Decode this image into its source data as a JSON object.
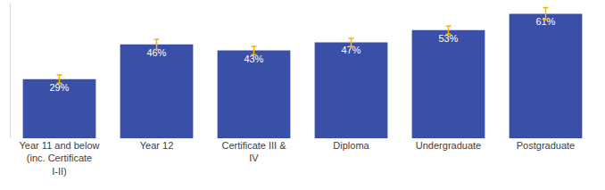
{
  "chart_data": {
    "type": "bar",
    "categories": [
      "Year 11 and below (inc. Certificate I-II)",
      "Year 12",
      "Certificate III & IV",
      "Diploma",
      "Undergraduate",
      "Postgraduate"
    ],
    "values": [
      29,
      46,
      43,
      47,
      53,
      61
    ],
    "value_labels": [
      "29%",
      "46%",
      "43%",
      "47%",
      "53%",
      "61%"
    ],
    "error": [
      2,
      2.5,
      2,
      2,
      2,
      3
    ],
    "color": "#3a4fa6",
    "error_color": "#f5b400",
    "ylim": [
      0,
      66
    ],
    "grid": false,
    "data_labels": true,
    "tick_labels": "x"
  }
}
